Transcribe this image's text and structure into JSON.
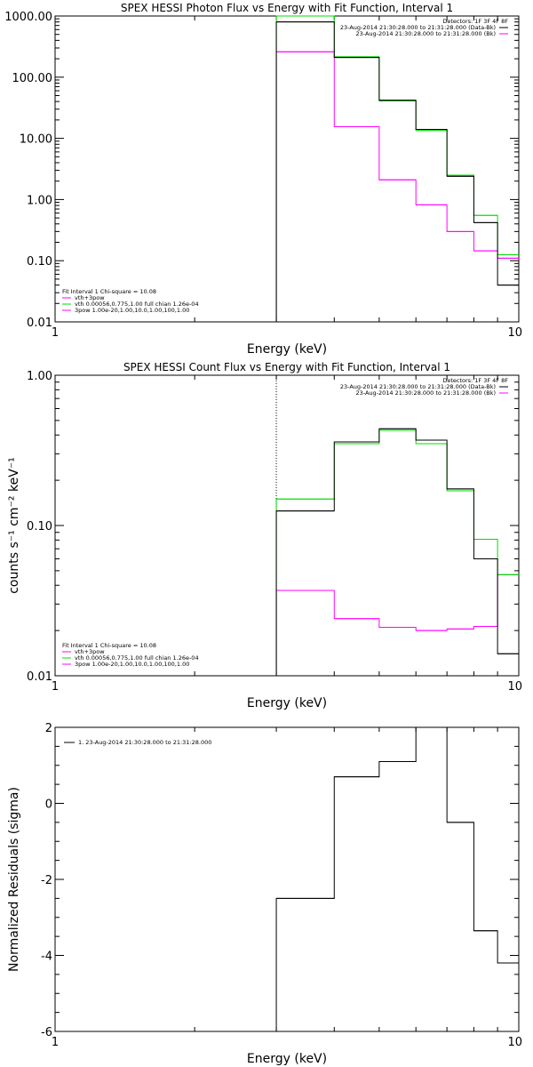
{
  "colors": {
    "data": "#000000",
    "total": "#00dd00",
    "components": "#ff00ff",
    "background": "#ffffff"
  },
  "chart_data": [
    {
      "type": "line",
      "step": true,
      "title": "SPEX HESSI Photon Flux vs Energy with Fit Function, Interval 1",
      "xlabel": "Energy (keV)",
      "ylabel": "",
      "xscale": "log",
      "yscale": "log",
      "xlim": [
        1,
        10
      ],
      "ylim": [
        0.01,
        1000
      ],
      "xticks": [
        {
          "v": 1,
          "label": "1"
        },
        {
          "v": 10,
          "label": "10"
        }
      ],
      "yticks": [
        {
          "v": 0.01,
          "label": "0.01"
        },
        {
          "v": 0.1,
          "label": "0.10"
        },
        {
          "v": 1,
          "label": "1.00"
        },
        {
          "v": 10,
          "label": "10.00"
        },
        {
          "v": 100,
          "label": "100.00"
        },
        {
          "v": 1000,
          "label": "1000.00"
        }
      ],
      "edges": [
        3,
        4,
        5,
        6,
        7,
        8,
        9,
        10
      ],
      "marker_line_x": 3,
      "series": [
        {
          "role": "data",
          "values": [
            800,
            210,
            42,
            14,
            2.4,
            0.42,
            0.04
          ]
        },
        {
          "role": "total",
          "values": [
            1000,
            215,
            41,
            13.5,
            2.5,
            0.55,
            0.125
          ]
        },
        {
          "role": "components",
          "values": [
            260,
            15.5,
            2.1,
            0.82,
            0.3,
            0.145,
            0.11
          ]
        }
      ],
      "legend_topright": [
        "Detectors: 1F 3F 4F 8F",
        "23-Aug-2014 21:30:28.000 to 21:31:28.000 (Data-Bk)",
        "23-Aug-2014 21:30:28.000 to 21:31:28.000 (Bk)"
      ],
      "legend_bottomleft": [
        "Fit Interval 1    Chi-square = 10.08",
        "vth+3pow",
        "vth 0.00056,0.775,1.00   full chian 1.26e-04",
        "3pow 1.00e-20,1.00,10.0,1.00,100,1.00"
      ]
    },
    {
      "type": "line",
      "step": true,
      "title": "SPEX HESSI Count Flux vs Energy with Fit Function, Interval 1",
      "xlabel": "Energy (keV)",
      "ylabel": "counts s⁻¹ cm⁻² keV⁻¹",
      "xscale": "log",
      "yscale": "log",
      "xlim": [
        1,
        10
      ],
      "ylim": [
        0.01,
        1.0
      ],
      "xticks": [
        {
          "v": 1,
          "label": "1"
        },
        {
          "v": 10,
          "label": "10"
        }
      ],
      "yticks": [
        {
          "v": 0.01,
          "label": "0.01"
        },
        {
          "v": 0.1,
          "label": "0.10"
        },
        {
          "v": 1,
          "label": "1.00"
        }
      ],
      "edges": [
        3,
        4,
        5,
        6,
        7,
        8,
        9,
        10
      ],
      "marker_line_x": 3,
      "series": [
        {
          "role": "data",
          "values": [
            0.125,
            0.36,
            0.44,
            0.37,
            0.175,
            0.06,
            0.014
          ]
        },
        {
          "role": "total",
          "values": [
            0.15,
            0.35,
            0.43,
            0.35,
            0.17,
            0.081,
            0.047
          ]
        },
        {
          "role": "components",
          "values": [
            0.037,
            0.024,
            0.021,
            0.02,
            0.0205,
            0.0213,
            0.047
          ]
        }
      ],
      "legend_topright": [
        "Detectors: 1F 3F 4F 8F",
        "23-Aug-2014 21:30:28.000 to 21:31:28.000 (Data-Bk)",
        "23-Aug-2014 21:30:28.000 to 21:31:28.000 (Bk)"
      ],
      "legend_bottomleft": [
        "Fit Interval 1    Chi-square = 10.08",
        "vth+3pow",
        "vth 0.00056,0.775,1.00   full chian 1.26e-04",
        "3pow 1.00e-20,1.00,10.0,1.00,100,1.00"
      ]
    },
    {
      "type": "line",
      "step": true,
      "title": "",
      "xlabel": "Energy (keV)",
      "ylabel": "Normalized Residuals (sigma)",
      "xscale": "log",
      "yscale": "linear",
      "xlim": [
        1,
        10
      ],
      "ylim": [
        -6,
        2
      ],
      "xticks": [
        {
          "v": 1,
          "label": "1"
        },
        {
          "v": 10,
          "label": "10"
        }
      ],
      "yticks": [
        {
          "v": -6,
          "label": "-6"
        },
        {
          "v": -4,
          "label": "-4"
        },
        {
          "v": -2,
          "label": "-2"
        },
        {
          "v": 0,
          "label": "0"
        },
        {
          "v": 2,
          "label": "2"
        }
      ],
      "edges": [
        3,
        4,
        5,
        6,
        7,
        8,
        9,
        10
      ],
      "series": [
        {
          "role": "data",
          "values": [
            -2.5,
            0.7,
            1.1,
            2.0,
            -0.5,
            -3.35,
            -4.2
          ]
        }
      ],
      "legend_topleft": [
        "1. 23-Aug-2014 21:30:28.000 to 21:31:28.000"
      ]
    }
  ]
}
